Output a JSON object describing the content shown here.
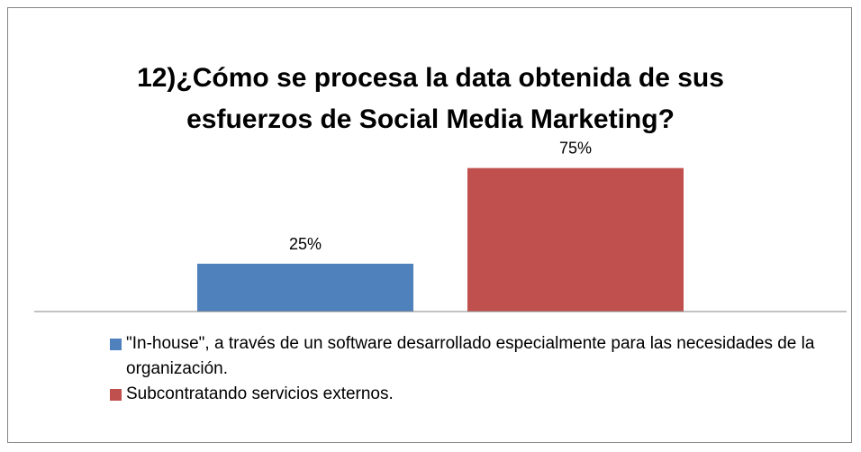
{
  "chart_data": {
    "type": "bar",
    "title": "12)¿Cómo se procesa la data obtenida de sus esfuerzos de Social Media Marketing?",
    "categories": [
      null
    ],
    "series": [
      {
        "name": "\"In-house\", a través de un software desarrollado especialmente para las necesidades de la organización.",
        "color": "#4f81bd",
        "values": [
          25
        ],
        "value_labels": [
          "25%"
        ]
      },
      {
        "name": "Subcontratando servicios externos.",
        "color": "#c0504d",
        "values": [
          75
        ],
        "value_labels": [
          "75%"
        ]
      }
    ],
    "ylim": [
      0,
      80
    ],
    "legend": "bottom"
  }
}
